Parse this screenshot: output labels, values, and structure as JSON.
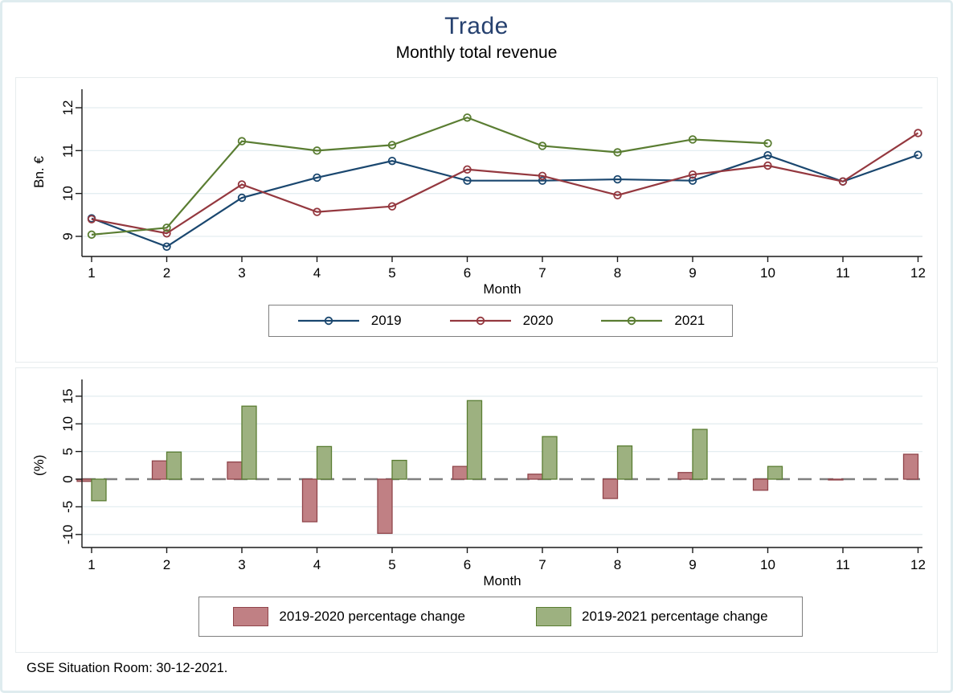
{
  "header": {
    "title": "Trade",
    "subtitle": "Monthly total revenue"
  },
  "footer": {
    "note": "GSE Situation Room: 30-12-2021."
  },
  "colors": {
    "title": "#26416f",
    "frame": "#dfecef",
    "panel_border": "#e7ecee",
    "grid": "#e4eef1",
    "axis": "#1a1a1a",
    "zero_line": "#808080",
    "legend_border": "#7f7f7f",
    "navy": "#1a476f",
    "maroon": "#94383f",
    "forest": "#5a7d32",
    "bar_red_fill": "#c08084",
    "bar_red_stroke": "#90454b",
    "bar_green_fill": "#9db180",
    "bar_green_stroke": "#5a7d32"
  },
  "chart_data": [
    {
      "type": "line",
      "title": "Monthly total revenue",
      "xlabel": "Month",
      "ylabel": "Bn. €",
      "x": [
        1,
        2,
        3,
        4,
        5,
        6,
        7,
        8,
        9,
        10,
        11,
        12
      ],
      "xticks": [
        1,
        2,
        3,
        4,
        5,
        6,
        7,
        8,
        9,
        10,
        11,
        12
      ],
      "yticks": [
        9,
        10,
        11,
        12
      ],
      "ylim": [
        8.5,
        12.45
      ],
      "grid": true,
      "marker": "hollow-circle",
      "legend_position": "below-center",
      "series": [
        {
          "name": "2019",
          "color": "#1a476f",
          "values": [
            9.42,
            8.76,
            9.9,
            10.37,
            10.76,
            10.3,
            10.3,
            10.33,
            10.3,
            10.89,
            10.28,
            10.9
          ]
        },
        {
          "name": "2020",
          "color": "#94383f",
          "values": [
            9.4,
            9.07,
            10.21,
            9.57,
            9.7,
            10.56,
            10.41,
            9.96,
            10.44,
            10.65,
            10.28,
            11.41
          ]
        },
        {
          "name": "2021",
          "color": "#5a7d32",
          "values": [
            9.04,
            9.2,
            11.22,
            11.0,
            11.13,
            11.77,
            11.11,
            10.96,
            11.26,
            11.17,
            null,
            null
          ]
        }
      ]
    },
    {
      "type": "bar",
      "xlabel": "Month",
      "ylabel": "(%)",
      "x": [
        1,
        2,
        3,
        4,
        5,
        6,
        7,
        8,
        9,
        10,
        11,
        12
      ],
      "xticks": [
        1,
        2,
        3,
        4,
        5,
        6,
        7,
        8,
        9,
        10,
        11,
        12
      ],
      "yticks": [
        -10,
        -5,
        0,
        5,
        10,
        15
      ],
      "ylim": [
        -12.3,
        18
      ],
      "grid": true,
      "zero_line": "dashed",
      "legend_position": "below-center",
      "series": [
        {
          "name": "2019-2020 percentage change",
          "fill": "#c08084",
          "stroke": "#90454b",
          "values": [
            -0.4,
            3.3,
            3.1,
            -7.7,
            -9.8,
            2.3,
            0.9,
            -3.5,
            1.2,
            -2.0,
            -0.1,
            4.5
          ]
        },
        {
          "name": "2019-2021 percentage change",
          "fill": "#9db180",
          "stroke": "#5a7d32",
          "values": [
            -3.9,
            4.9,
            13.2,
            5.9,
            3.4,
            14.2,
            7.7,
            6.0,
            9.0,
            2.3,
            null,
            null
          ]
        }
      ]
    }
  ]
}
